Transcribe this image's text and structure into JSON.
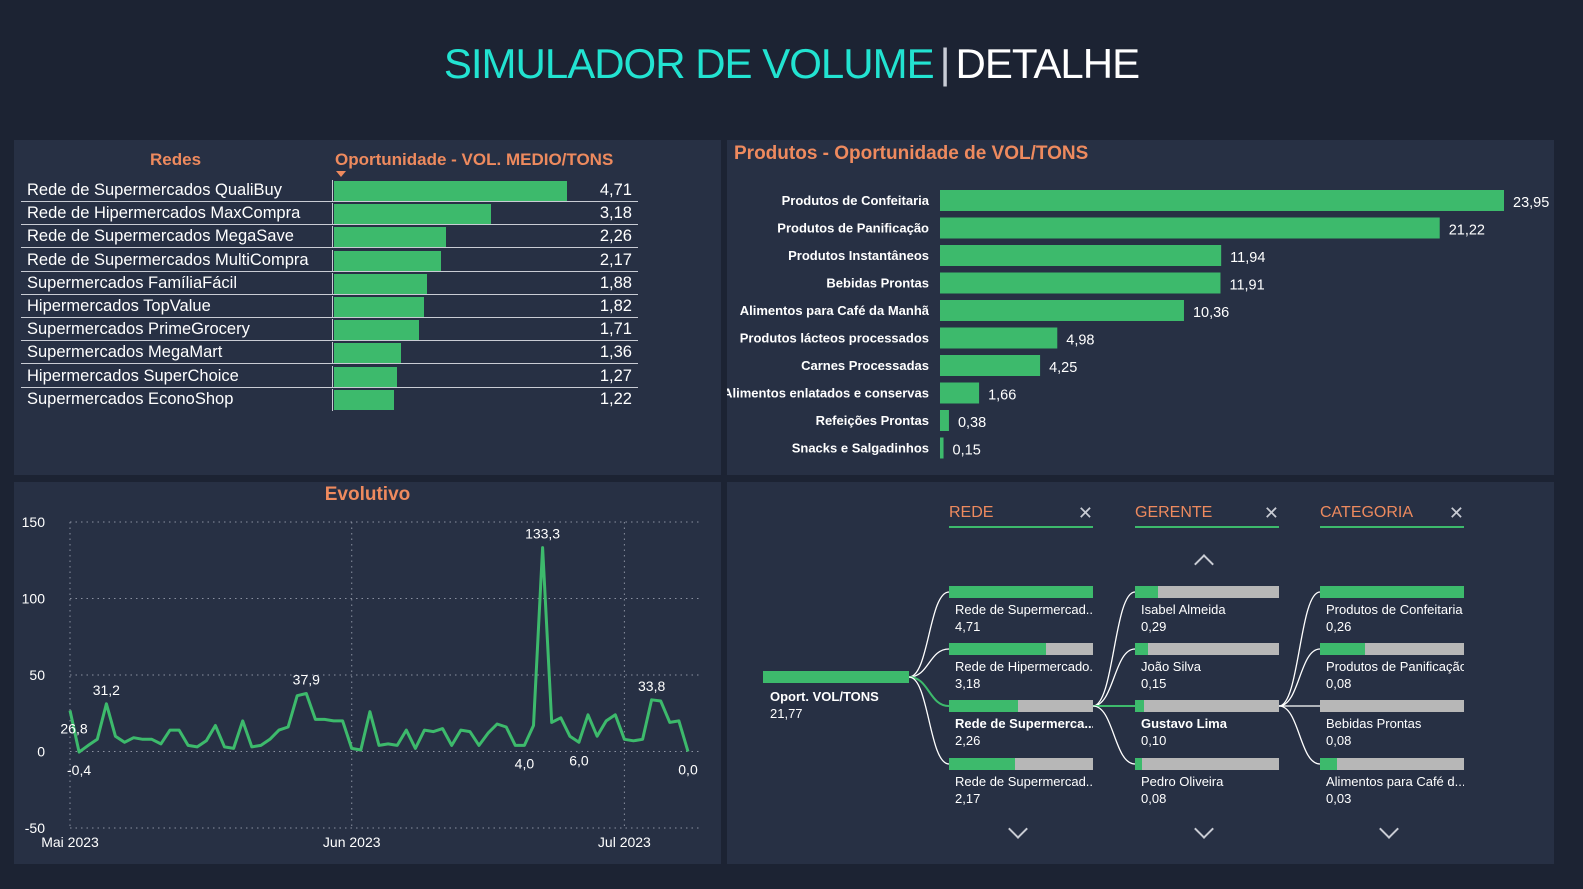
{
  "header": {
    "title_accent": "SIMULADOR DE VOLUME",
    "separator": "|",
    "title_rest": "DETALHE"
  },
  "redes_table": {
    "col_redes": "Redes",
    "col_oportunidade": "Oportunidade - VOL. MEDIO/TONS",
    "max": 4.71,
    "rows": [
      {
        "name": "Rede de Supermercados QualiBuy",
        "value": 4.71,
        "label": "4,71"
      },
      {
        "name": "Rede de Hipermercados MaxCompra",
        "value": 3.18,
        "label": "3,18"
      },
      {
        "name": "Rede de Supermercados MegaSave",
        "value": 2.26,
        "label": "2,26"
      },
      {
        "name": "Rede de Supermercados MultiCompra",
        "value": 2.17,
        "label": "2,17"
      },
      {
        "name": "Supermercados FamíliaFácil",
        "value": 1.88,
        "label": "1,88"
      },
      {
        "name": "Hipermercados TopValue",
        "value": 1.82,
        "label": "1,82"
      },
      {
        "name": "Supermercados PrimeGrocery",
        "value": 1.71,
        "label": "1,71"
      },
      {
        "name": "Supermercados MegaMart",
        "value": 1.36,
        "label": "1,36"
      },
      {
        "name": "Hipermercados SuperChoice",
        "value": 1.27,
        "label": "1,27"
      },
      {
        "name": "Supermercados EconoShop",
        "value": 1.22,
        "label": "1,22"
      }
    ]
  },
  "chart_data": [
    {
      "type": "bar",
      "orientation": "horizontal",
      "title": "Produtos - Oportunidade de VOL/TONS",
      "categories": [
        "Produtos de Confeitaria",
        "Produtos de Panificação",
        "Produtos Instantâneos",
        "Bebidas Prontas",
        "Alimentos para Café da Manhã",
        "Produtos lácteos processados",
        "Carnes Processadas",
        "Alimentos enlatados e conservas",
        "Refeições Prontas",
        "Snacks e Salgadinhos"
      ],
      "values": [
        23.95,
        21.22,
        11.94,
        11.91,
        10.36,
        4.98,
        4.25,
        1.66,
        0.38,
        0.15
      ],
      "labels": [
        "23,95",
        "21,22",
        "11,94",
        "11,91",
        "10,36",
        "4,98",
        "4,25",
        "1,66",
        "0,38",
        "0,15"
      ],
      "color": "#3dba6c"
    },
    {
      "type": "line",
      "title": "Evolutivo",
      "ylim": [
        -50,
        150
      ],
      "yticks": [
        150,
        100,
        50,
        0,
        -50
      ],
      "xticks": [
        {
          "label": "Mai 2023",
          "x": "2023-05-01"
        },
        {
          "label": "Jun 2023",
          "x": "2023-06-01"
        },
        {
          "label": "Jul 2023",
          "x": "2023-07-01"
        }
      ],
      "x_start": "2023-05-01",
      "color": "#3dba6c",
      "values": [
        26.8,
        -0.4,
        4,
        8,
        31.2,
        10,
        6,
        9,
        8,
        8,
        5,
        14,
        14,
        4,
        3,
        7,
        17,
        3,
        2,
        20,
        3,
        4,
        8,
        14,
        16,
        36.5,
        37.9,
        21,
        21,
        20,
        20,
        2,
        1,
        26,
        4,
        5,
        4,
        14,
        2,
        14,
        13,
        15,
        4,
        14,
        13,
        4,
        12,
        18,
        16,
        4,
        4.0,
        17,
        133.3,
        19,
        22,
        10,
        6.0,
        24,
        10,
        20,
        24,
        8,
        7,
        8,
        33.8,
        33,
        19,
        20,
        0.0
      ],
      "point_labels": [
        {
          "i": 0,
          "text": "26,8",
          "pos": "below"
        },
        {
          "i": 1,
          "text": "-0,4",
          "pos": "below"
        },
        {
          "i": 4,
          "text": "31,2",
          "pos": "above"
        },
        {
          "i": 26,
          "text": "37,9",
          "pos": "above"
        },
        {
          "i": 50,
          "text": "4,0",
          "pos": "below"
        },
        {
          "i": 52,
          "text": "133,3",
          "pos": "above"
        },
        {
          "i": 56,
          "text": "6,0",
          "pos": "below"
        },
        {
          "i": 64,
          "text": "33,8",
          "pos": "above"
        },
        {
          "i": 68,
          "text": "0,0",
          "pos": "below"
        }
      ]
    }
  ],
  "tree": {
    "root": {
      "label": "Oport. VOL/TONS",
      "value": "21,77"
    },
    "columns": [
      {
        "header": "REDE",
        "nodes": [
          {
            "label": "Rede de Supermercad...",
            "value": "4,71",
            "fill": 1.0
          },
          {
            "label": "Rede de Hipermercado...",
            "value": "3,18",
            "fill": 0.675
          },
          {
            "label": "Rede de Supermerca...",
            "value": "2,26",
            "fill": 0.48,
            "selected": true
          },
          {
            "label": "Rede de Supermercad...",
            "value": "2,17",
            "fill": 0.46
          }
        ]
      },
      {
        "header": "GERENTE",
        "nodes": [
          {
            "label": "Isabel Almeida",
            "value": "0,29",
            "fill": 0.16
          },
          {
            "label": "João Silva",
            "value": "0,15",
            "fill": 0.09
          },
          {
            "label": "Gustavo Lima",
            "value": "0,10",
            "fill": 0.06,
            "selected": true
          },
          {
            "label": "Pedro Oliveira",
            "value": "0,08",
            "fill": 0.05
          }
        ]
      },
      {
        "header": "CATEGORIA",
        "nodes": [
          {
            "label": "Produtos de Confeitaria",
            "value": "0,26",
            "fill": 1.0
          },
          {
            "label": "Produtos de Panificação",
            "value": "0,08",
            "fill": 0.31
          },
          {
            "label": "Bebidas Prontas",
            "value": "0,08",
            "fill": 0.0
          },
          {
            "label": "Alimentos para Café d...",
            "value": "0,03",
            "fill": 0.12
          }
        ]
      }
    ]
  }
}
